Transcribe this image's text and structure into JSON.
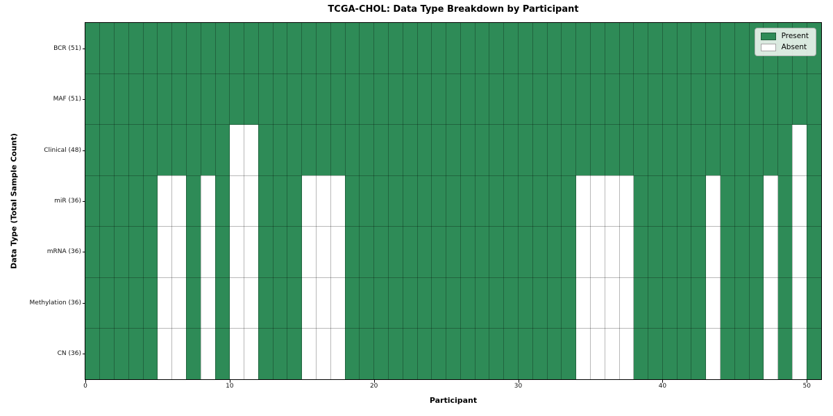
{
  "chart_data": {
    "type": "heatmap",
    "title": "TCGA-CHOL: Data Type Breakdown by Participant",
    "xlabel": "Participant",
    "ylabel": "Data Type (Total Sample Count)",
    "n_participants": 51,
    "x_range": [
      0,
      51
    ],
    "x_ticks": [
      0,
      10,
      20,
      30,
      40,
      50
    ],
    "grid": true,
    "legend_position": "upper right",
    "legend": [
      {
        "label": "Present",
        "color": "#2E8B57"
      },
      {
        "label": "Absent",
        "color": "#ffffff"
      }
    ],
    "colors": {
      "present": "#2E8B57",
      "absent": "#ffffff",
      "grid_line": "rgba(0,0,0,0.28)",
      "frame": "#000000"
    },
    "rows": [
      {
        "name": "BCR",
        "label": "BCR (51)",
        "present_count": 51,
        "absent_participants": []
      },
      {
        "name": "MAF",
        "label": "MAF (51)",
        "present_count": 51,
        "absent_participants": []
      },
      {
        "name": "Clinical",
        "label": "Clinical (48)",
        "present_count": 48,
        "absent_participants": [
          10,
          11,
          49
        ]
      },
      {
        "name": "miR",
        "label": "miR (36)",
        "present_count": 36,
        "absent_participants": [
          5,
          6,
          8,
          10,
          11,
          15,
          16,
          17,
          34,
          35,
          36,
          37,
          43,
          47,
          49
        ]
      },
      {
        "name": "mRNA",
        "label": "mRNA (36)",
        "present_count": 36,
        "absent_participants": [
          5,
          6,
          8,
          10,
          11,
          15,
          16,
          17,
          34,
          35,
          36,
          37,
          43,
          47,
          49
        ]
      },
      {
        "name": "Methylation",
        "label": "Methylation (36)",
        "present_count": 36,
        "absent_participants": [
          5,
          6,
          8,
          10,
          11,
          15,
          16,
          17,
          34,
          35,
          36,
          37,
          43,
          47,
          49
        ]
      },
      {
        "name": "CN",
        "label": "CN (36)",
        "present_count": 36,
        "absent_participants": [
          5,
          6,
          8,
          10,
          11,
          15,
          16,
          17,
          34,
          35,
          36,
          37,
          43,
          47,
          49
        ]
      }
    ]
  }
}
